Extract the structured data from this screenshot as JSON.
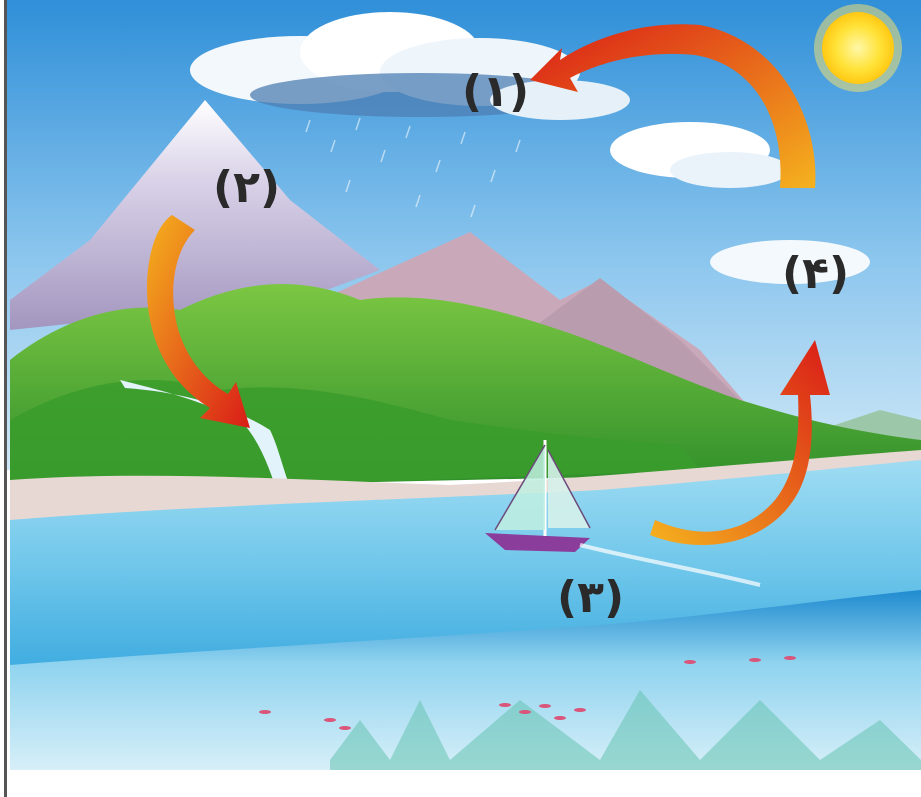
{
  "diagram": {
    "labels": {
      "stage_1": "(۱)",
      "stage_2": "(۲)",
      "stage_3": "(۳)",
      "stage_4": "(۴)"
    },
    "colors": {
      "sky_top": "#2f8fd8",
      "sky_bottom": "#b9dcf4",
      "sea": "#6ec6ea",
      "deep_sea": "#1f8bd0",
      "forest": "#3fa52f",
      "arrow_start": "#f5b21e",
      "arrow_end": "#d91c17",
      "sun": "#ffd21c"
    },
    "icons": [
      "sun-icon",
      "cloud-icon",
      "mountain-icon",
      "sailboat-icon",
      "fish-icon"
    ]
  }
}
